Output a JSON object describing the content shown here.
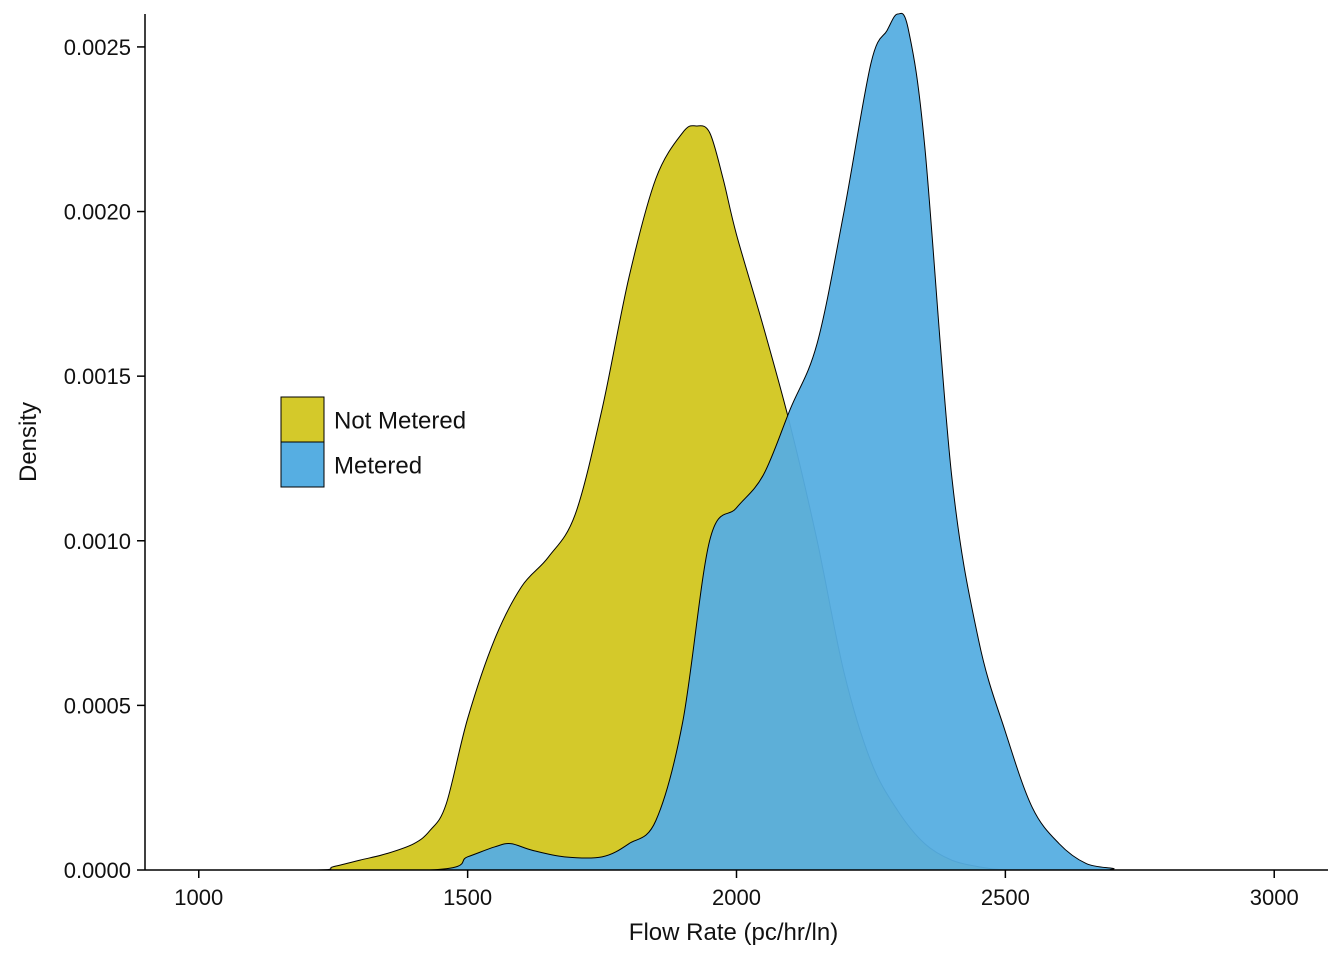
{
  "chart_data": {
    "type": "area",
    "subtype": "density",
    "title": "",
    "xlabel": "Flow Rate (pc/hr/ln)",
    "ylabel": "Density",
    "xlim": [
      900,
      3100
    ],
    "ylim": [
      0,
      0.0026
    ],
    "xticks": [
      1000,
      1500,
      2000,
      2500,
      3000
    ],
    "xtick_labels": [
      "1000",
      "1500",
      "2000",
      "2500",
      "3000"
    ],
    "yticks": [
      0,
      0.0005,
      0.001,
      0.0015,
      0.002,
      0.0025
    ],
    "ytick_labels": [
      "0.0000",
      "0.0005",
      "0.0010",
      "0.0015",
      "0.0020",
      "0.0025"
    ],
    "grid": false,
    "legend_position": "left-center",
    "series": [
      {
        "name": "Not Metered",
        "color": "#D4C92A",
        "x": [
          1000,
          1220,
          1250,
          1300,
          1350,
          1400,
          1430,
          1460,
          1500,
          1550,
          1600,
          1650,
          1700,
          1750,
          1800,
          1850,
          1900,
          1925,
          1950,
          1975,
          2000,
          2050,
          2100,
          2150,
          2200,
          2250,
          2300,
          2350,
          2400,
          2450,
          2500,
          2600,
          3000
        ],
        "y": [
          0,
          0,
          1e-05,
          3e-05,
          5e-05,
          8e-05,
          0.00012,
          0.0002,
          0.00046,
          0.0007,
          0.00086,
          0.00095,
          0.00108,
          0.0014,
          0.0018,
          0.0021,
          0.00224,
          0.00226,
          0.00224,
          0.0021,
          0.00193,
          0.00165,
          0.00135,
          0.001,
          0.0006,
          0.00033,
          0.00018,
          8e-05,
          3e-05,
          1e-05,
          0,
          0,
          0
        ]
      },
      {
        "name": "Metered",
        "color": "#56AEE2",
        "x": [
          1000,
          1430,
          1500,
          1550,
          1580,
          1620,
          1680,
          1750,
          1800,
          1850,
          1900,
          1950,
          2000,
          2050,
          2100,
          2150,
          2200,
          2250,
          2280,
          2300,
          2320,
          2350,
          2400,
          2450,
          2500,
          2550,
          2600,
          2650,
          2700,
          2720,
          3000
        ],
        "y": [
          0,
          0,
          4e-05,
          7e-05,
          8e-05,
          6e-05,
          4e-05,
          4e-05,
          8e-05,
          0.00015,
          0.00045,
          0.001,
          0.0011,
          0.0012,
          0.0014,
          0.0016,
          0.002,
          0.00245,
          0.00255,
          0.0026,
          0.00255,
          0.0022,
          0.0012,
          0.0007,
          0.00042,
          0.00019,
          8e-05,
          2e-05,
          5e-06,
          0,
          0
        ]
      }
    ]
  }
}
